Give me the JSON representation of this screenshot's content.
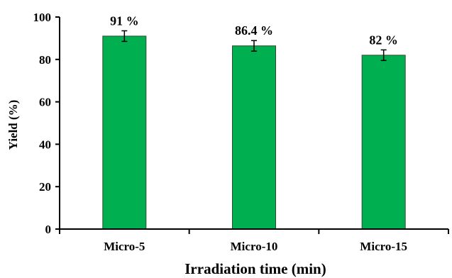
{
  "chart_data": {
    "type": "bar",
    "categories": [
      "Micro-5",
      "Micro-10",
      "Micro-15"
    ],
    "values": [
      91,
      86.4,
      82
    ],
    "errors": [
      2.5,
      2.5,
      2.5
    ],
    "data_labels": [
      "91 %",
      "86.4 %",
      "82 %"
    ],
    "xlabel": "Irradiation time (min)",
    "ylabel": "Yield (%)",
    "ylim": [
      0,
      100
    ],
    "yticks": [
      0,
      20,
      40,
      60,
      80,
      100
    ],
    "ytick_labels": [
      "0",
      "20",
      "40",
      "60",
      "80",
      "100"
    ],
    "grid": false,
    "legend": "none",
    "colors": {
      "bar_fill": "#00b050",
      "bar_stroke": "#2e4a2e",
      "axis": "#000000"
    }
  }
}
